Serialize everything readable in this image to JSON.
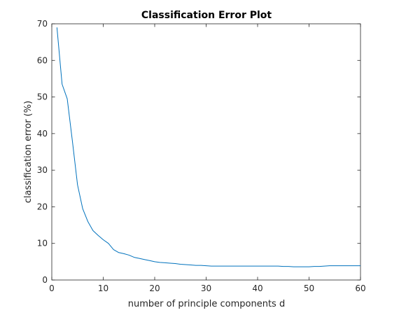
{
  "chart_data": {
    "type": "line",
    "title": "Classification Error Plot",
    "xlabel": "number of principle components d",
    "ylabel": "classification error (%)",
    "xlim": [
      0,
      60
    ],
    "ylim": [
      0,
      70
    ],
    "xticks": [
      0,
      10,
      20,
      30,
      40,
      50,
      60
    ],
    "yticks": [
      0,
      10,
      20,
      30,
      40,
      50,
      60,
      70
    ],
    "grid": false,
    "line_color": "#0072bd",
    "series": [
      {
        "name": "",
        "x": [
          1,
          2,
          3,
          4,
          5,
          6,
          7,
          8,
          9,
          10,
          11,
          12,
          13,
          14,
          15,
          16,
          17,
          18,
          19,
          20,
          21,
          22,
          23,
          24,
          25,
          26,
          27,
          28,
          29,
          30,
          31,
          32,
          33,
          34,
          35,
          36,
          37,
          38,
          39,
          40,
          41,
          42,
          43,
          44,
          45,
          46,
          47,
          48,
          49,
          50,
          51,
          52,
          53,
          54,
          55,
          56,
          57,
          58,
          59,
          60
        ],
        "values": [
          69.0,
          53.5,
          49.5,
          38.0,
          26.0,
          19.5,
          16.0,
          13.5,
          12.2,
          11.0,
          10.0,
          8.3,
          7.5,
          7.2,
          6.8,
          6.2,
          5.9,
          5.6,
          5.3,
          5.0,
          4.8,
          4.7,
          4.6,
          4.5,
          4.3,
          4.2,
          4.1,
          4.0,
          4.0,
          3.9,
          3.8,
          3.8,
          3.8,
          3.8,
          3.8,
          3.8,
          3.8,
          3.8,
          3.8,
          3.8,
          3.8,
          3.8,
          3.8,
          3.8,
          3.7,
          3.7,
          3.6,
          3.6,
          3.6,
          3.6,
          3.7,
          3.7,
          3.8,
          3.9,
          3.9,
          3.9,
          3.9,
          3.9,
          3.9,
          3.9
        ]
      }
    ]
  }
}
